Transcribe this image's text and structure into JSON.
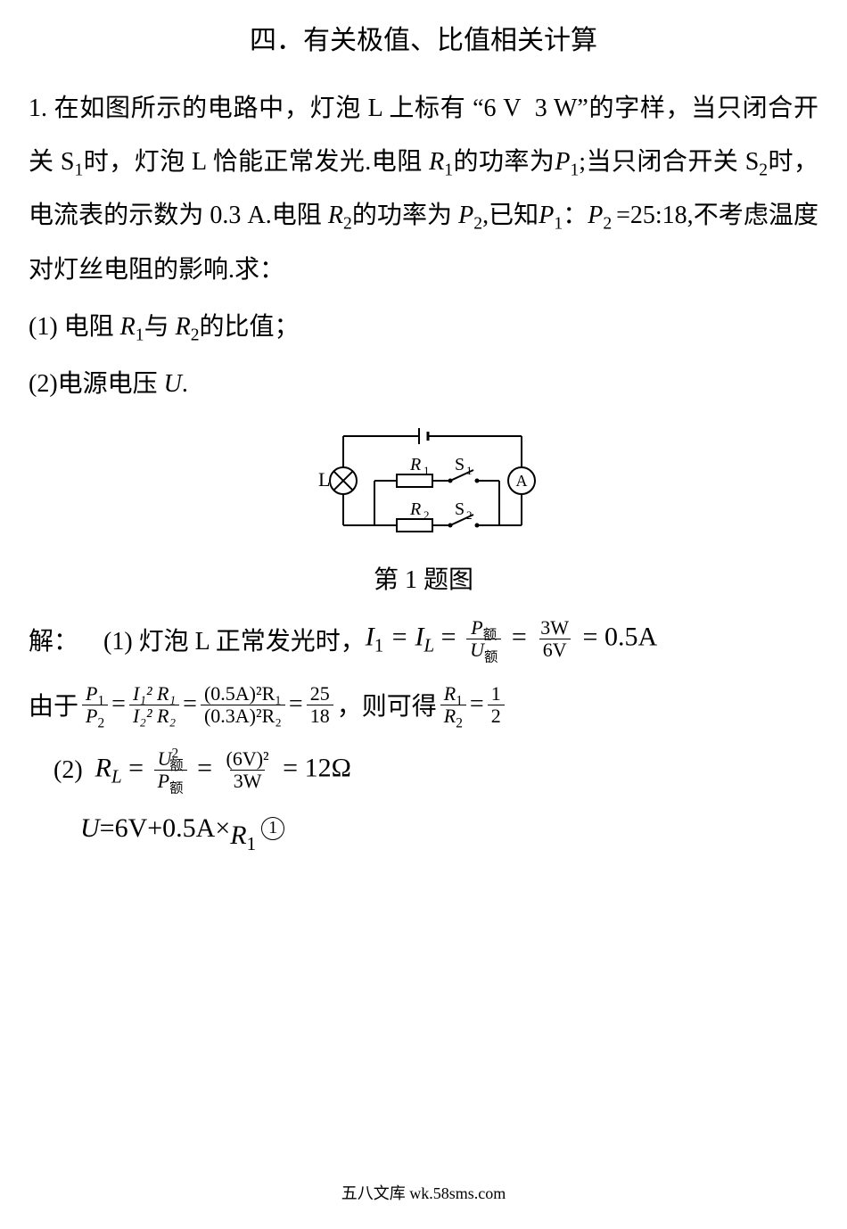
{
  "title": "四．有关极值、比值相关计算",
  "problem": {
    "body_html": "1. 在如图所示的电路中，灯泡 L 上标有 “6 V  3 W”的字样，当只闭合开关 S<span class='sub'>1</span>时，灯泡 L 恰能正常发光.电阻 <span class='italic'>R</span><span class='sub'>1</span>的功率为<span class='italic'>P</span><span class='sub'>1</span>;当只闭合开关 S<span class='sub'>2</span>时，电流表的示数为 0.3 A.电阻 <span class='italic'>R</span><span class='sub'>2</span>的功率为 <span class='italic'>P</span><span class='sub'>2</span>,已知<span class='italic'>P</span><span class='sub'>1</span>：<span class='italic'>P</span><span class='sub'>2 </span>=25:18,不考虑温度对灯丝电阻的影响.求：",
    "q1": "(1) 电阻 <span class='italic'>R</span><span class='sub'>1</span>与 <span class='italic'>R</span><span class='sub'>2</span>的比值；",
    "q2": "(2)电源电压 <span class='italic'>U</span>."
  },
  "circuit": {
    "L_label": "L",
    "R1_label": "R",
    "R1_sub": "1",
    "S1_label": "S",
    "S1_sub": "1",
    "R2_label": "R",
    "R2_sub": "2",
    "S2_label": "S",
    "S2_sub": "2",
    "A_label": "A",
    "stroke": "#000000",
    "bg": "#ffffff"
  },
  "caption": "第 1 题图",
  "solution": {
    "s1_prefix": "解： (1)  灯泡 L 正常发光时，",
    "s1_eq_left": "I",
    "s1_eq_left_sub": "1",
    "s1_eq_mid": " = I",
    "s1_eq_mid_sub": "L",
    "s1_eq_eq": " = ",
    "s1_frac1_num": "P",
    "s1_frac1_num_sub": "额",
    "s1_frac1_den": "U",
    "s1_frac1_den_sub": "额",
    "s1_eq2": " = ",
    "s1_frac2_num": "3W",
    "s1_frac2_den": "6V",
    "s1_eq3": " = 0.5A",
    "s2_prefix": "由于",
    "s2_frac1_num": "P",
    "s2_frac1_num_sub": "1",
    "s2_frac1_den": "P",
    "s2_frac1_den_sub": "2",
    "s2_eq1": " = ",
    "s2_frac2_num": "I₁² R₁",
    "s2_frac2_den": "I₂² R₂",
    "s2_eq2": " = ",
    "s2_frac3_num": "(0.5A)²R₁",
    "s2_frac3_den": "(0.3A)²R₂",
    "s2_eq3": " = ",
    "s2_frac4_num": "25",
    "s2_frac4_den": "18",
    "s2_mid": "，则可得",
    "s2_frac5_num": "R",
    "s2_frac5_num_sub": "1",
    "s2_frac5_den": "R",
    "s2_frac5_den_sub": "2",
    "s2_eq4": " = ",
    "s2_frac6_num": "1",
    "s2_frac6_den": "2",
    "s3_prefix": "(2) ",
    "s3_RL": "R",
    "s3_RL_sub": "L",
    "s3_eq1": " = ",
    "s3_frac1_num": "U",
    "s3_frac1_num_sup": "2",
    "s3_frac1_num_sub": "额",
    "s3_frac1_den": "P",
    "s3_frac1_den_sub": "额",
    "s3_eq2": " = ",
    "s3_frac2_num": "(6V)²",
    "s3_frac2_den": "3W",
    "s3_eq3": " = 12Ω",
    "s4_text1": "U",
    "s4_text2": "=6V+0.5A×",
    "s4_R": "R",
    "s4_R_sub": "1",
    "s4_circ": "1"
  },
  "footer": "五八文库 wk.58sms.com"
}
